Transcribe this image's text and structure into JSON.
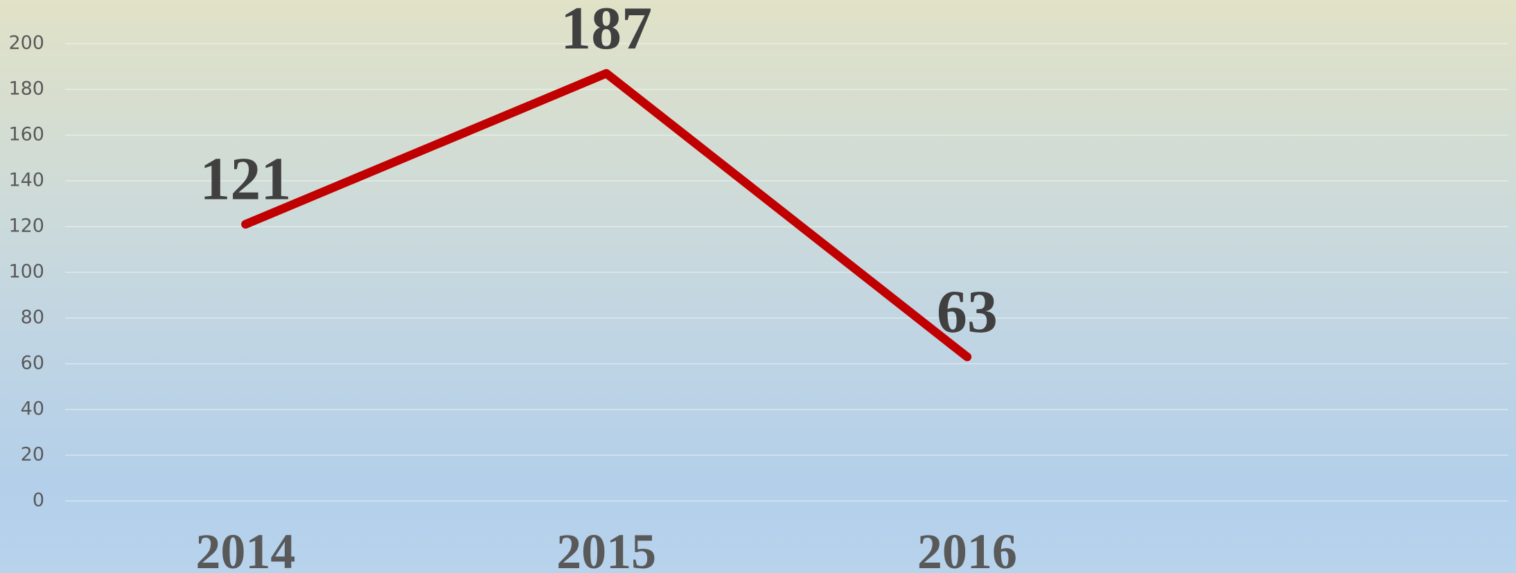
{
  "chart_data": {
    "type": "line",
    "categories": [
      "2014",
      "2015",
      "2016",
      null
    ],
    "series": [
      {
        "name": null,
        "color": "#c00000",
        "values": [
          121,
          187,
          63,
          null
        ]
      }
    ],
    "ylim": [
      0,
      200
    ],
    "yticks": [
      0,
      20,
      40,
      60,
      80,
      100,
      120,
      140,
      160,
      180,
      200
    ],
    "grid": true
  }
}
